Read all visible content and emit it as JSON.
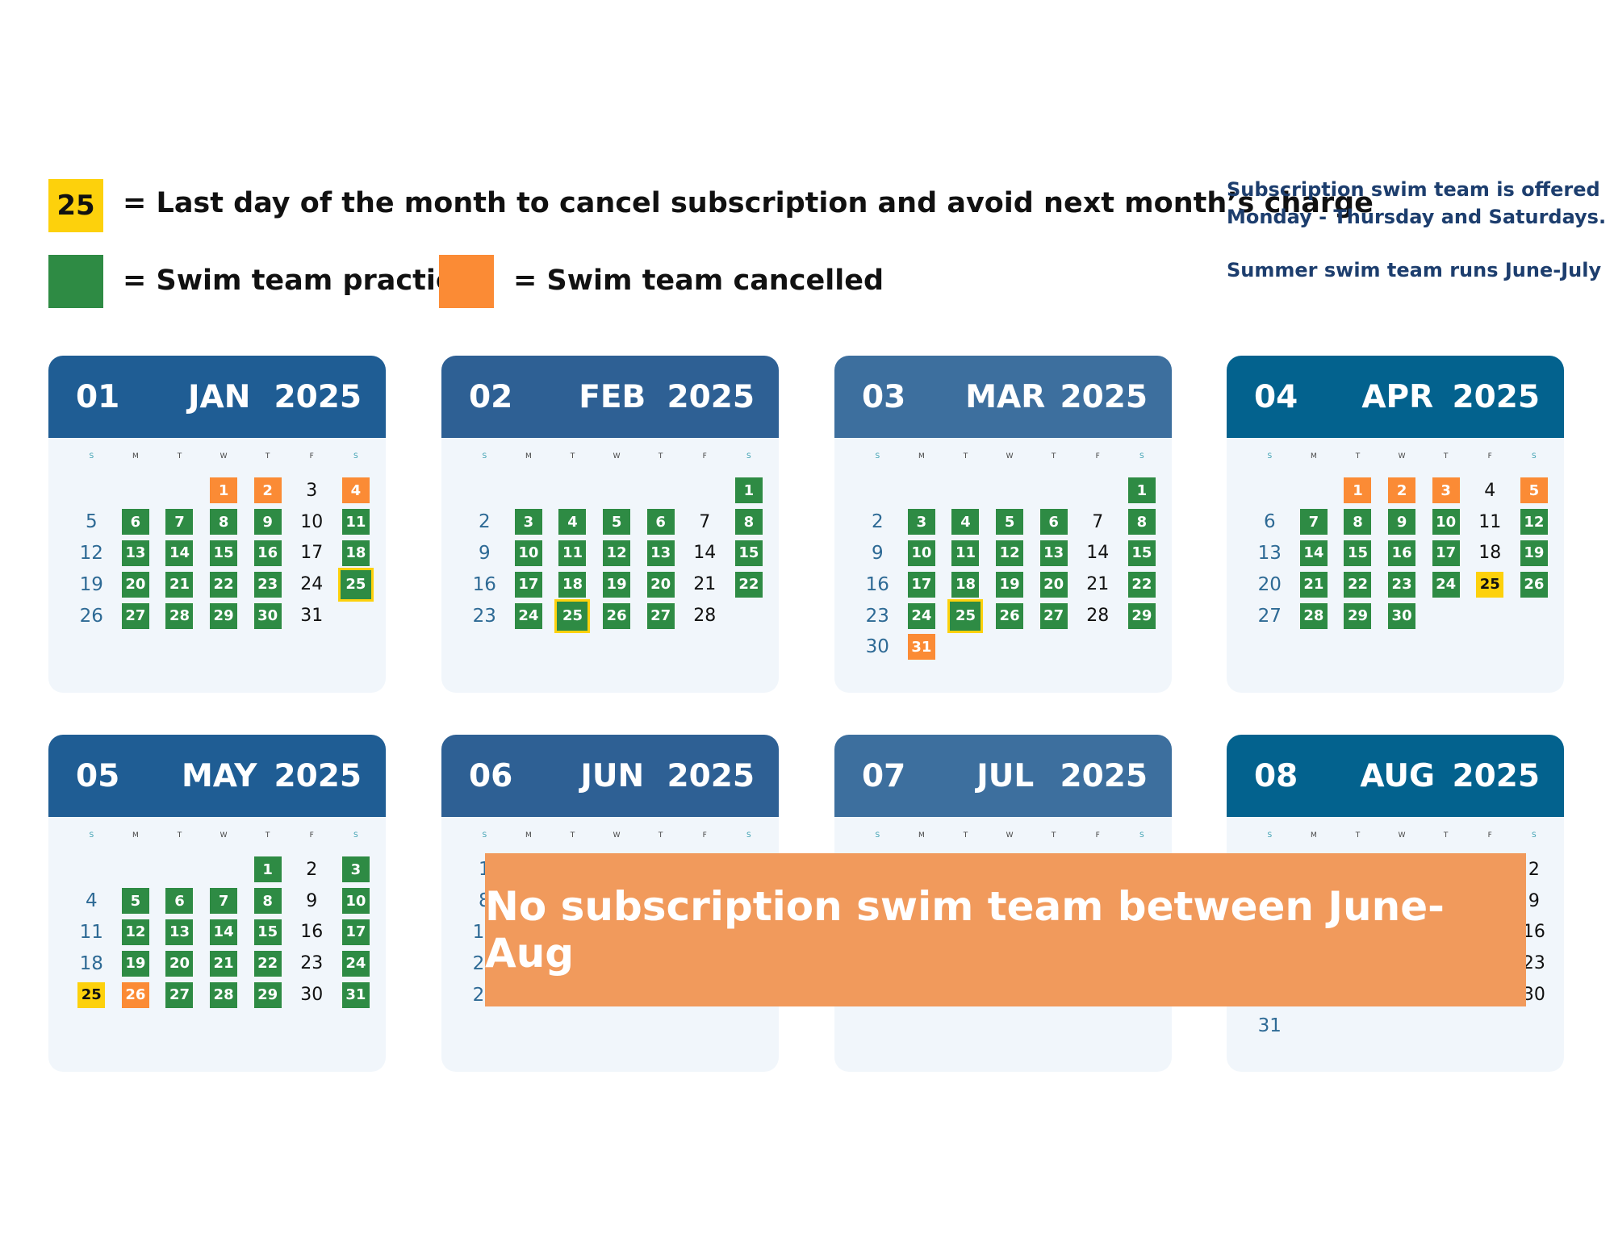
{
  "legend": {
    "last_day_sample": "25",
    "last_day_text": "= Last day of the month to cancel subscription and avoid next month’s charge",
    "practice_text": "= Swim team practice",
    "cancelled_text": "= Swim team cancelled",
    "colors": {
      "last_day": "#fdd10c",
      "practice": "#2e8b44",
      "cancelled": "#fb8b35"
    }
  },
  "notes": {
    "offered_line1": "Subscription swim team is offered",
    "offered_line2": "Monday - Thursday and Saturdays.",
    "summer": "Summer swim team runs June-July"
  },
  "weekday_letters": [
    "S",
    "M",
    "T",
    "W",
    "T",
    "F",
    "S"
  ],
  "months": [
    {
      "num": "01",
      "name": "JAN",
      "year": "2025",
      "header_color": "#1f5d94",
      "start_dow": 3,
      "days": 31,
      "practice": [
        6,
        7,
        8,
        9,
        11,
        13,
        14,
        15,
        16,
        18,
        20,
        21,
        22,
        23,
        25,
        27,
        28,
        29,
        30
      ],
      "cancelled": [
        1,
        2,
        4
      ],
      "last_day": 25
    },
    {
      "num": "02",
      "name": "FEB",
      "year": "2025",
      "header_color": "#2e6094",
      "start_dow": 6,
      "days": 28,
      "practice": [
        1,
        3,
        4,
        5,
        6,
        8,
        10,
        11,
        12,
        13,
        15,
        17,
        18,
        19,
        20,
        22,
        24,
        25,
        26,
        27
      ],
      "cancelled": [],
      "last_day": 25
    },
    {
      "num": "03",
      "name": "MAR",
      "year": "2025",
      "header_color": "#3d6f9e",
      "start_dow": 6,
      "days": 31,
      "practice": [
        1,
        3,
        4,
        5,
        6,
        8,
        10,
        11,
        12,
        13,
        15,
        17,
        18,
        19,
        20,
        22,
        24,
        25,
        26,
        27,
        29
      ],
      "cancelled": [
        31
      ],
      "last_day": 25
    },
    {
      "num": "04",
      "name": "APR",
      "year": "2025",
      "header_color": "#03628e",
      "start_dow": 2,
      "days": 30,
      "practice": [
        7,
        8,
        9,
        10,
        12,
        14,
        15,
        16,
        17,
        19,
        21,
        22,
        23,
        24,
        26,
        28,
        29,
        30
      ],
      "cancelled": [
        1,
        2,
        3,
        5
      ],
      "last_day": 25
    },
    {
      "num": "05",
      "name": "MAY",
      "year": "2025",
      "header_color": "#1f5d94",
      "start_dow": 4,
      "days": 31,
      "practice": [
        1,
        3,
        5,
        6,
        7,
        8,
        10,
        12,
        13,
        14,
        15,
        17,
        19,
        20,
        21,
        22,
        24,
        27,
        28,
        29,
        31
      ],
      "cancelled": [
        26
      ],
      "last_day": 25
    },
    {
      "num": "06",
      "name": "JUN",
      "year": "2025",
      "header_color": "#2e6094",
      "start_dow": 0,
      "days": 30,
      "practice": [],
      "cancelled": [],
      "last_day": null
    },
    {
      "num": "07",
      "name": "JUL",
      "year": "2025",
      "header_color": "#3d6f9e",
      "start_dow": 2,
      "days": 31,
      "practice": [],
      "cancelled": [],
      "last_day": null
    },
    {
      "num": "08",
      "name": "AUG",
      "year": "2025",
      "header_color": "#03628e",
      "start_dow": 5,
      "days": 31,
      "practice": [],
      "cancelled": [],
      "last_day": null
    }
  ],
  "banner": "No subscription swim team between June-Aug"
}
